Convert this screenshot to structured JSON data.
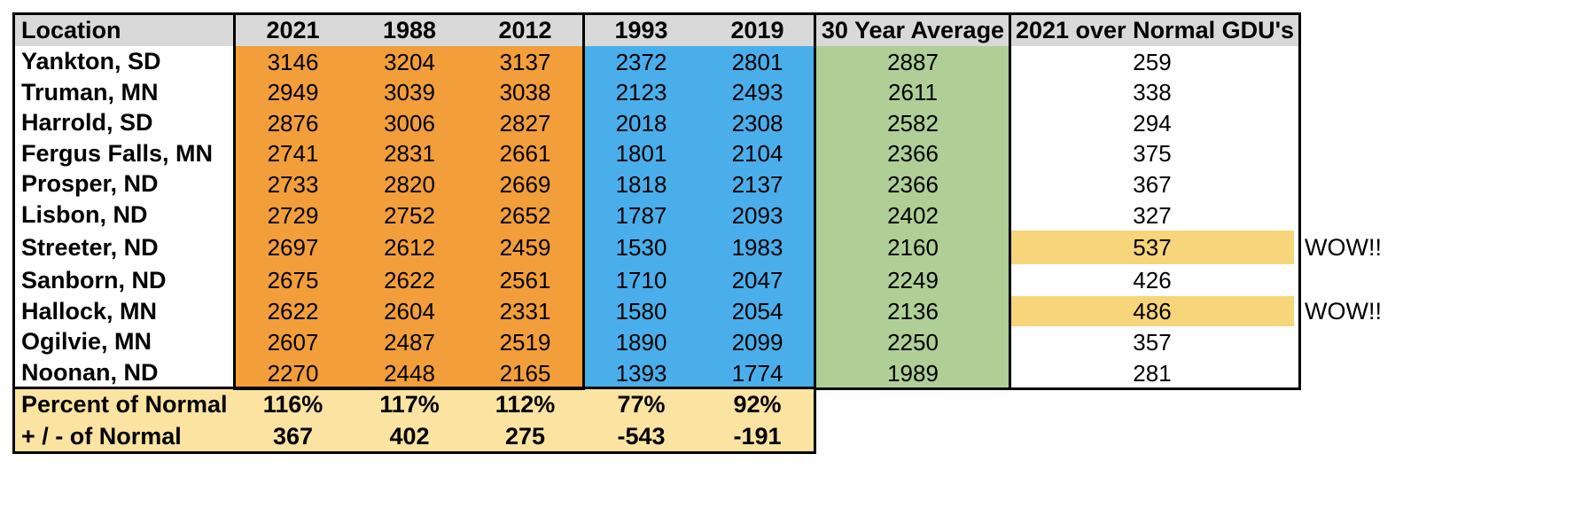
{
  "headers": [
    "Location",
    "2021",
    "1988",
    "2012",
    "1993",
    "2019",
    "30 Year Average",
    "2021 over Normal GDU's"
  ],
  "rows": [
    {
      "location": "Yankton, SD",
      "values": [
        "3146",
        "3204",
        "3137",
        "2372",
        "2801",
        "2887",
        "259"
      ],
      "note": ""
    },
    {
      "location": "Truman, MN",
      "values": [
        "2949",
        "3039",
        "3038",
        "2123",
        "2493",
        "2611",
        "338"
      ],
      "note": ""
    },
    {
      "location": "Harrold, SD",
      "values": [
        "2876",
        "3006",
        "2827",
        "2018",
        "2308",
        "2582",
        "294"
      ],
      "note": ""
    },
    {
      "location": "Fergus Falls, MN",
      "values": [
        "2741",
        "2831",
        "2661",
        "1801",
        "2104",
        "2366",
        "375"
      ],
      "note": ""
    },
    {
      "location": "Prosper, ND",
      "values": [
        "2733",
        "2820",
        "2669",
        "1818",
        "2137",
        "2366",
        "367"
      ],
      "note": ""
    },
    {
      "location": "Lisbon, ND",
      "values": [
        "2729",
        "2752",
        "2652",
        "1787",
        "2093",
        "2402",
        "327"
      ],
      "note": ""
    },
    {
      "location": "Streeter, ND",
      "values": [
        "2697",
        "2612",
        "2459",
        "1530",
        "1983",
        "2160",
        "537"
      ],
      "note": "WOW!!"
    },
    {
      "location": "Sanborn, ND",
      "values": [
        "2675",
        "2622",
        "2561",
        "1710",
        "2047",
        "2249",
        "426"
      ],
      "note": ""
    },
    {
      "location": "Hallock, MN",
      "values": [
        "2622",
        "2604",
        "2331",
        "1580",
        "2054",
        "2136",
        "486"
      ],
      "note": "WOW!!"
    },
    {
      "location": "Ogilvie, MN",
      "values": [
        "2607",
        "2487",
        "2519",
        "1890",
        "2099",
        "2250",
        "357"
      ],
      "note": ""
    },
    {
      "location": "Noonan, ND",
      "values": [
        "2270",
        "2448",
        "2165",
        "1393",
        "1774",
        "1989",
        "281"
      ],
      "note": ""
    }
  ],
  "footer": [
    {
      "label": "Percent of Normal",
      "values": [
        "116%",
        "117%",
        "112%",
        "77%",
        "92%"
      ]
    },
    {
      "label": "+ / - of Normal",
      "values": [
        "367",
        "402",
        "275",
        "-543",
        "-191"
      ]
    }
  ],
  "colors": {
    "header_bg": "#d9d9d9",
    "hot_years": "#f29e3a",
    "cool_years": "#4aaeea",
    "average": "#b0cf96",
    "footer_bg": "#fbe3a1",
    "highlight": "#f7d57a"
  }
}
